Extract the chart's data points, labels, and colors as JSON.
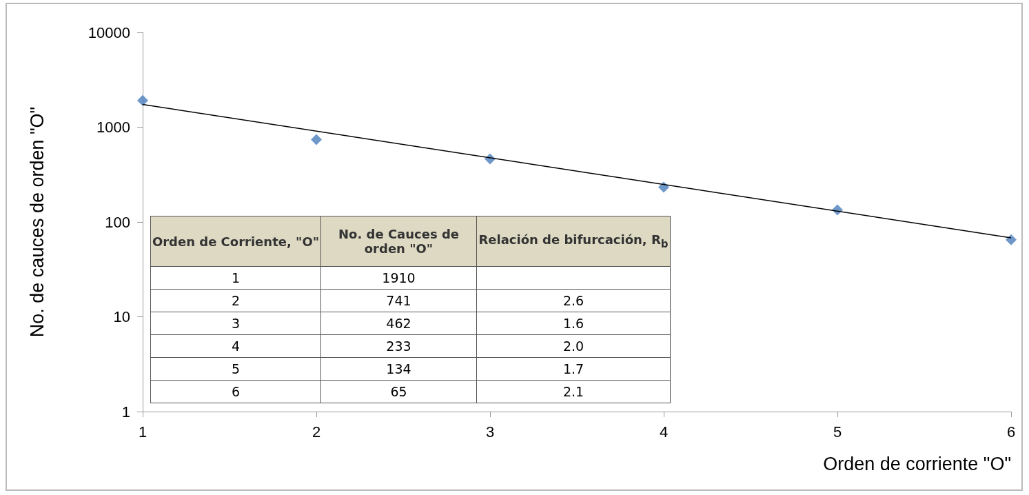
{
  "chart_data": {
    "type": "scatter",
    "xlabel": "Orden de corriente \"O\"",
    "ylabel": "No. de cauces de orden \"O\"",
    "x": [
      1,
      2,
      3,
      4,
      5,
      6
    ],
    "series": [
      {
        "color": "#4a7ebb",
        "values": [
          1910,
          741,
          462,
          233,
          134,
          65
        ],
        "marker": "diamond"
      },
      {
        "type": "line",
        "color": "#000000",
        "x": [
          1,
          6
        ],
        "values": [
          1740,
          68
        ],
        "marker": "none",
        "line_style": "solid"
      }
    ],
    "xlim": [
      1,
      6
    ],
    "xticks": [
      1,
      2,
      3,
      4,
      5,
      6
    ],
    "ylim": [
      1,
      10000
    ],
    "yticks": [
      1,
      10,
      100,
      1000,
      10000
    ],
    "log": "y",
    "grid": false,
    "annotations": [
      "Orden de Corriente, \"O\"",
      "No. de Cauces de orden \"O\"",
      "Relación de bifurcación, R$_{b}$",
      "1",
      "2",
      "3",
      "4",
      "5",
      "6",
      "1910",
      "741",
      "462",
      "233",
      "134",
      "65",
      "2.6",
      "1.6",
      "2.0",
      "1.7",
      "2.1"
    ]
  }
}
